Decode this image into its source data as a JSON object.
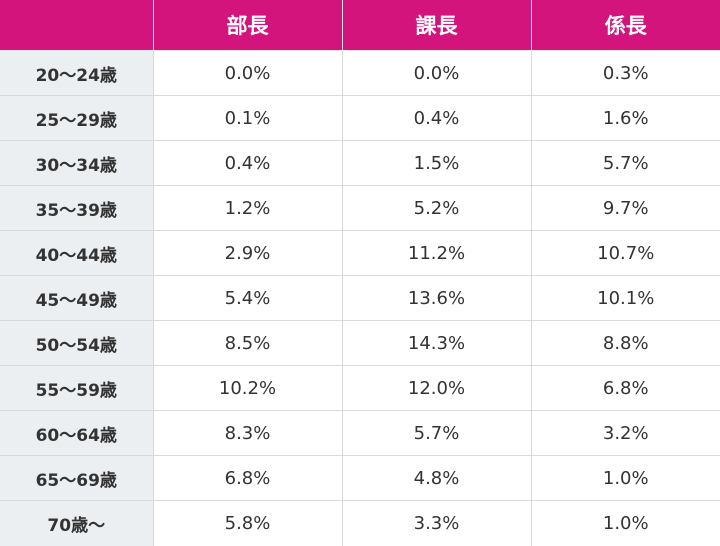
{
  "header": {
    "corner": "",
    "columns": [
      "部長",
      "課長",
      "係長"
    ]
  },
  "rows": [
    {
      "age": "20～24歳",
      "values": [
        "0.0%",
        "0.0%",
        "0.3%"
      ]
    },
    {
      "age": "25～29歳",
      "values": [
        "0.1%",
        "0.4%",
        "1.6%"
      ]
    },
    {
      "age": "30～34歳",
      "values": [
        "0.4%",
        "1.5%",
        "5.7%"
      ]
    },
    {
      "age": "35～39歳",
      "values": [
        "1.2%",
        "5.2%",
        "9.7%"
      ]
    },
    {
      "age": "40～44歳",
      "values": [
        "2.9%",
        "11.2%",
        "10.7%"
      ]
    },
    {
      "age": "45～49歳",
      "values": [
        "5.4%",
        "13.6%",
        "10.1%"
      ]
    },
    {
      "age": "50～54歳",
      "values": [
        "8.5%",
        "14.3%",
        "8.8%"
      ]
    },
    {
      "age": "55～59歳",
      "values": [
        "10.2%",
        "12.0%",
        "6.8%"
      ]
    },
    {
      "age": "60～64歳",
      "values": [
        "8.3%",
        "5.7%",
        "3.2%"
      ]
    },
    {
      "age": "65～69歳",
      "values": [
        "6.8%",
        "4.8%",
        "1.0%"
      ]
    },
    {
      "age": "70歳～",
      "values": [
        "5.8%",
        "3.3%",
        "1.0%"
      ]
    }
  ],
  "colors": {
    "header_bg": "#d4147d",
    "header_text": "#ffffff",
    "row_header_bg": "#eceff1",
    "text": "#333333",
    "grid": "#d9d9d9"
  }
}
